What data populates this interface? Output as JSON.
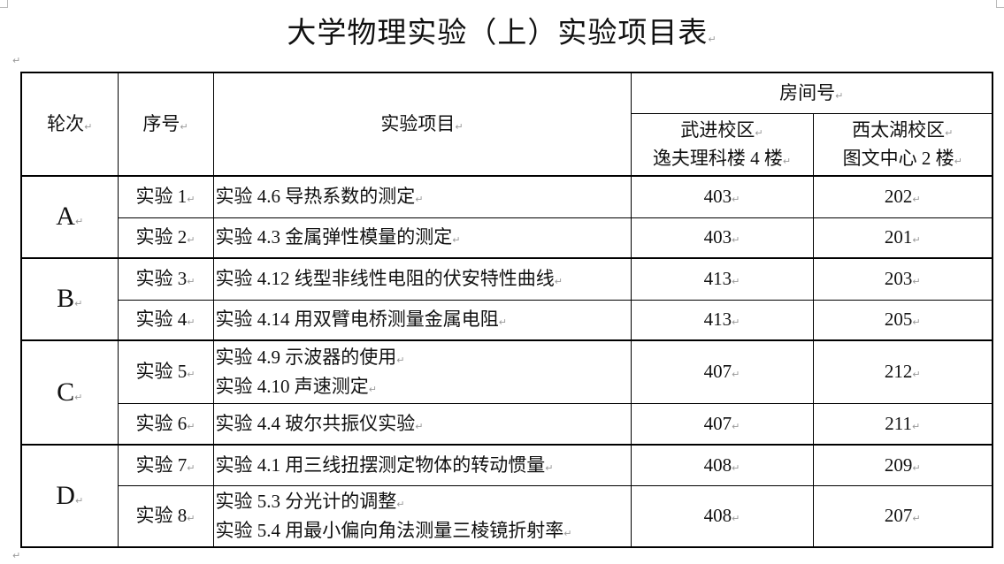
{
  "title": "大学物理实验（上）实验项目表",
  "header": {
    "round": "轮次",
    "seq": "序号",
    "project": "实验项目",
    "room": "房间号",
    "campus1_line1": "武进校区",
    "campus1_line2": "逸夫理科楼 4 楼",
    "campus2_line1": "西太湖校区",
    "campus2_line2": "图文中心 2 楼"
  },
  "rows": [
    {
      "round": "A",
      "seq": "实验 1",
      "projects": [
        "实验 4.6  导热系数的测定"
      ],
      "room1": "403",
      "room2": "202"
    },
    {
      "seq": "实验 2",
      "projects": [
        "实验 4.3  金属弹性模量的测定"
      ],
      "room1": "403",
      "room2": "201"
    },
    {
      "round": "B",
      "seq": "实验 3",
      "projects": [
        "实验 4.12  线型非线性电阻的伏安特性曲线"
      ],
      "room1": "413",
      "room2": "203"
    },
    {
      "seq": "实验 4",
      "projects": [
        "实验 4.14  用双臂电桥测量金属电阻"
      ],
      "room1": "413",
      "room2": "205"
    },
    {
      "round": "C",
      "seq": "实验 5",
      "projects": [
        "实验 4.9  示波器的使用",
        "实验 4.10  声速测定"
      ],
      "room1": "407",
      "room2": "212"
    },
    {
      "seq": "实验 6",
      "projects": [
        "实验 4.4  玻尔共振仪实验"
      ],
      "room1": "407",
      "room2": "211"
    },
    {
      "round": "D",
      "seq": "实验 7",
      "projects": [
        "实验 4.1  用三线扭摆测定物体的转动惯量"
      ],
      "room1": "408",
      "room2": "209"
    },
    {
      "seq": "实验 8",
      "projects": [
        "实验 5.3  分光计的调整",
        "实验 5.4 用最小偏向角法测量三棱镜折射率"
      ],
      "room1": "408",
      "room2": "207"
    }
  ],
  "paragraph_mark": "↵"
}
